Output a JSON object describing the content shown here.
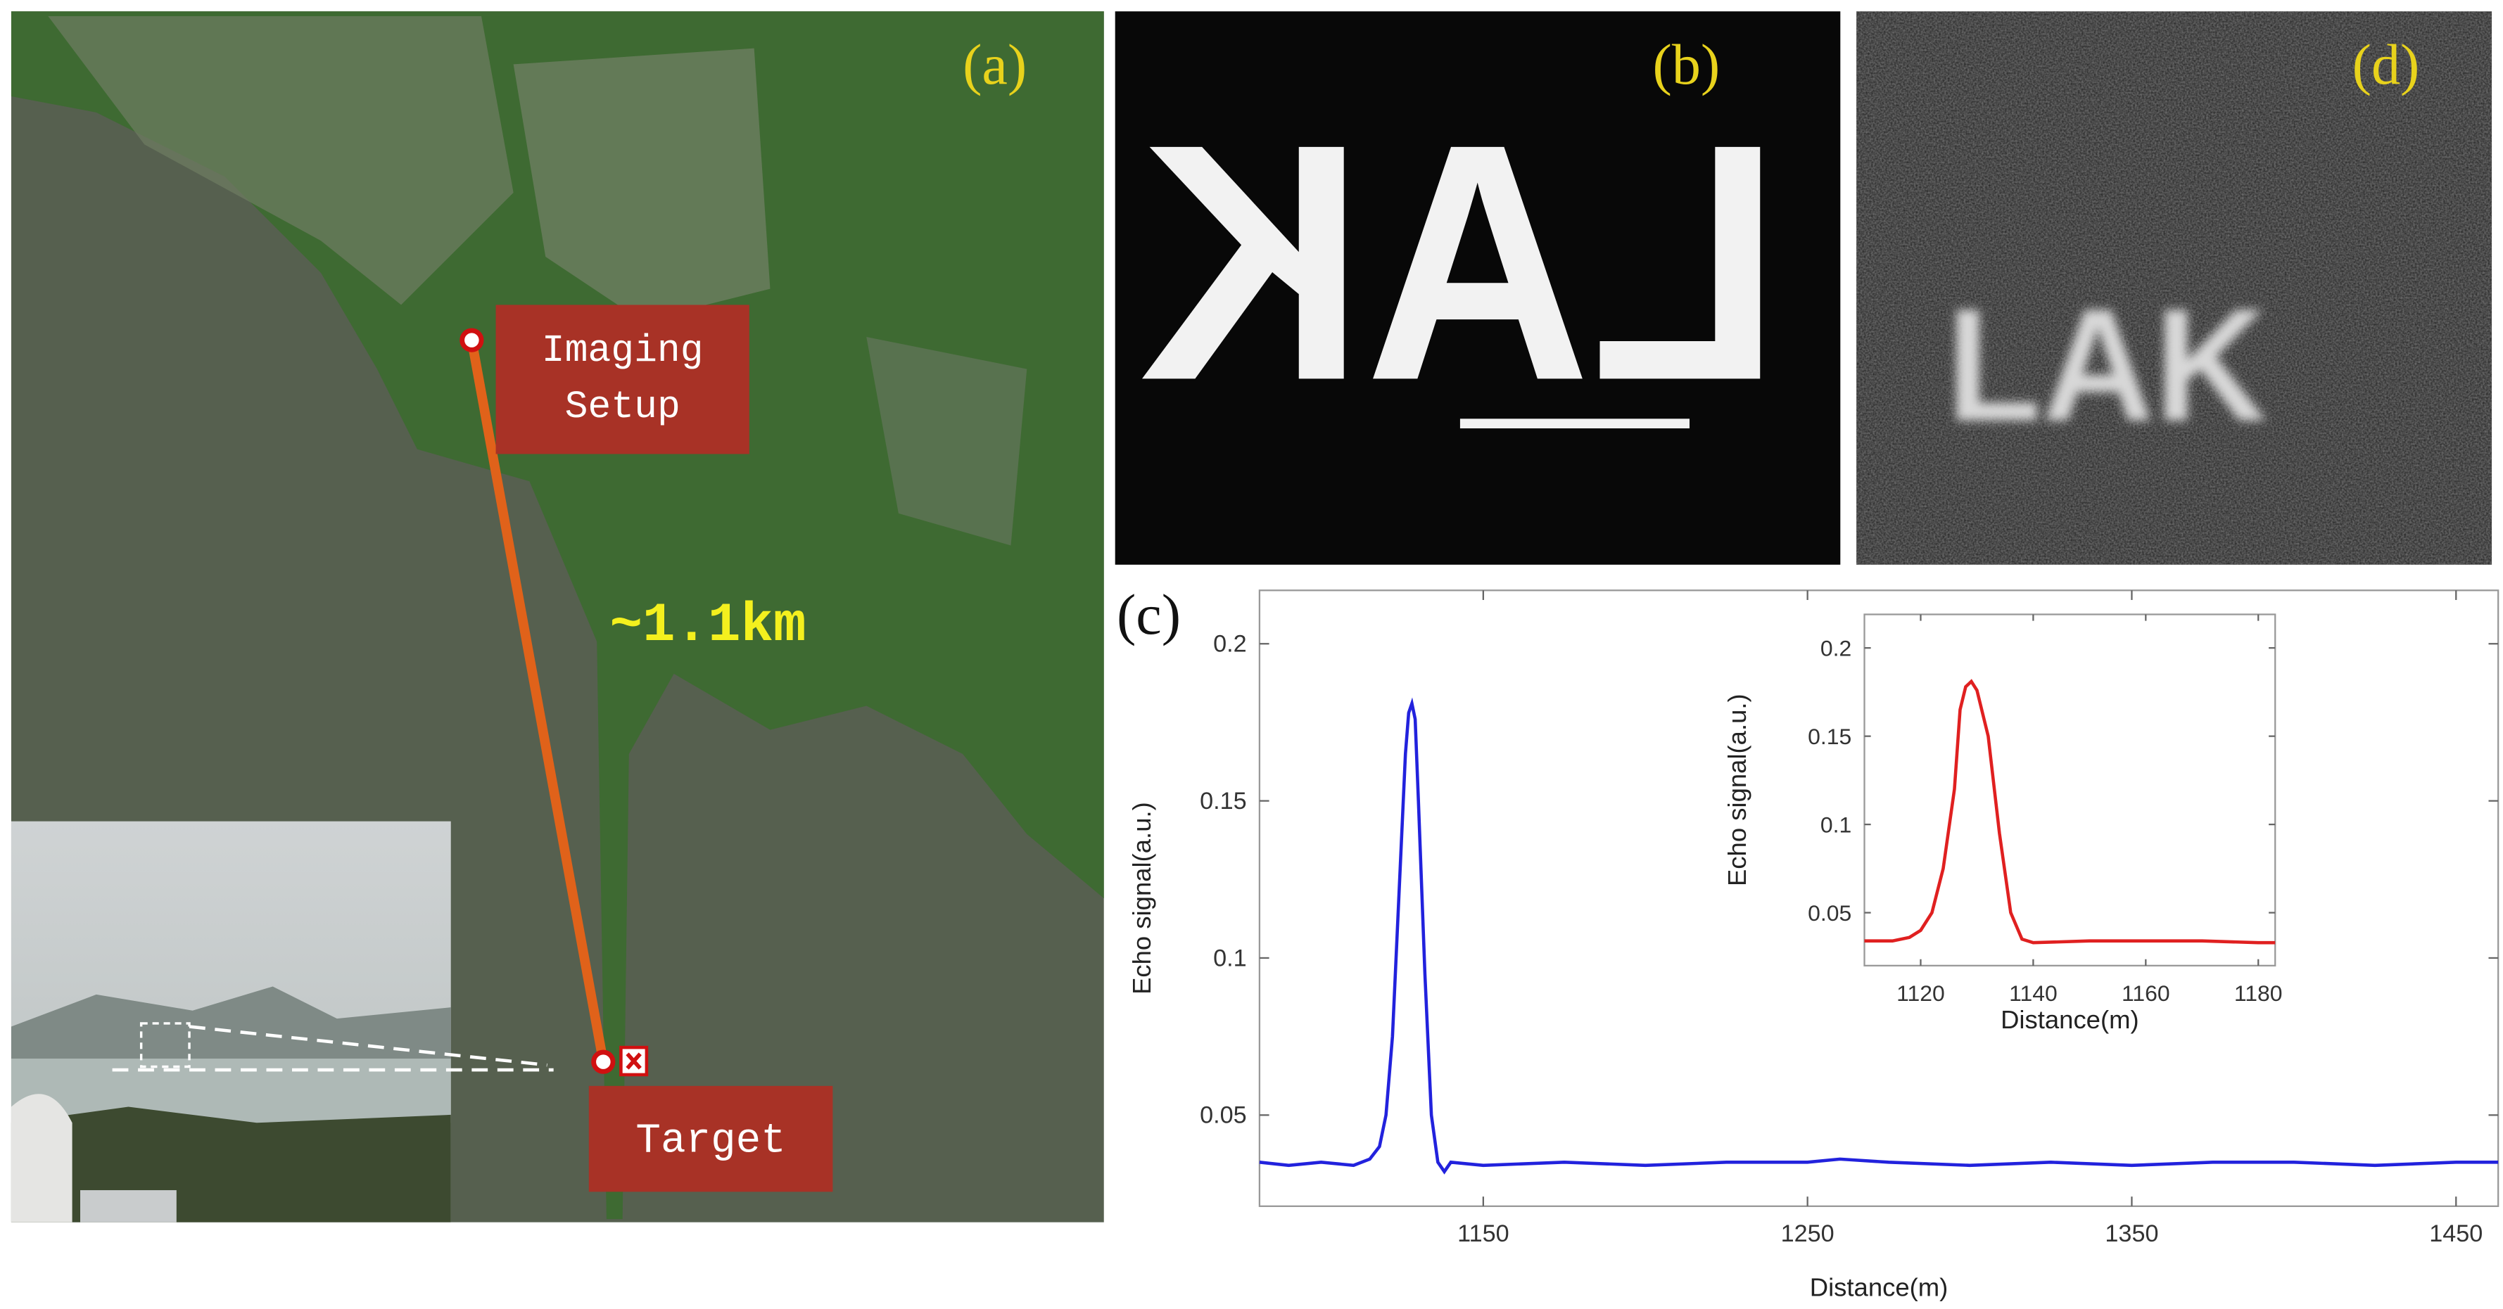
{
  "panels": {
    "a": {
      "label": "(a)",
      "setup_label": [
        "Imaging",
        "Setup"
      ],
      "distance_label": "~1.1km",
      "target_label": "Target"
    },
    "b": {
      "label": "(b)",
      "object_text": "LAK"
    },
    "c": {
      "label": "(c)"
    },
    "d": {
      "label": "(d)",
      "object_text": "LAK"
    }
  },
  "chart_data": [
    {
      "type": "line",
      "xlabel": "Distance(m)",
      "ylabel": "Echo signal(a.u.)",
      "color": "#2222dd",
      "x": [
        1081,
        1090,
        1100,
        1110,
        1115,
        1118,
        1120,
        1122,
        1124,
        1126,
        1127,
        1128,
        1129,
        1130,
        1132,
        1134,
        1136,
        1138,
        1140,
        1150,
        1175,
        1200,
        1225,
        1250,
        1260,
        1275,
        1300,
        1325,
        1350,
        1375,
        1400,
        1425,
        1450,
        1463
      ],
      "values": [
        0.035,
        0.034,
        0.035,
        0.034,
        0.036,
        0.04,
        0.05,
        0.075,
        0.12,
        0.165,
        0.178,
        0.181,
        0.176,
        0.15,
        0.095,
        0.05,
        0.035,
        0.032,
        0.035,
        0.034,
        0.035,
        0.034,
        0.035,
        0.035,
        0.036,
        0.035,
        0.034,
        0.035,
        0.034,
        0.035,
        0.035,
        0.034,
        0.035,
        0.035
      ],
      "xlim": [
        1081,
        1463
      ],
      "ylim": [
        0.021,
        0.217
      ],
      "xticks": [
        1150,
        1250,
        1350,
        1450
      ],
      "yticks": [
        0.05,
        0.1,
        0.15,
        0.2
      ]
    },
    {
      "type": "line",
      "xlabel": "Distance(m)",
      "ylabel": "Echo signal(a.u.)",
      "color": "#e02020",
      "x": [
        1110,
        1115,
        1118,
        1120,
        1122,
        1124,
        1126,
        1127,
        1128,
        1129,
        1130,
        1132,
        1134,
        1136,
        1138,
        1140,
        1150,
        1160,
        1170,
        1180,
        1183
      ],
      "values": [
        0.034,
        0.034,
        0.036,
        0.04,
        0.05,
        0.075,
        0.12,
        0.165,
        0.178,
        0.181,
        0.176,
        0.15,
        0.095,
        0.05,
        0.035,
        0.033,
        0.034,
        0.034,
        0.034,
        0.033,
        0.033
      ],
      "xlim": [
        1110,
        1183
      ],
      "ylim": [
        0.02,
        0.219
      ],
      "xticks": [
        1120,
        1140,
        1160,
        1180
      ],
      "yticks": [
        0.05,
        0.1,
        0.15,
        0.2
      ]
    }
  ]
}
